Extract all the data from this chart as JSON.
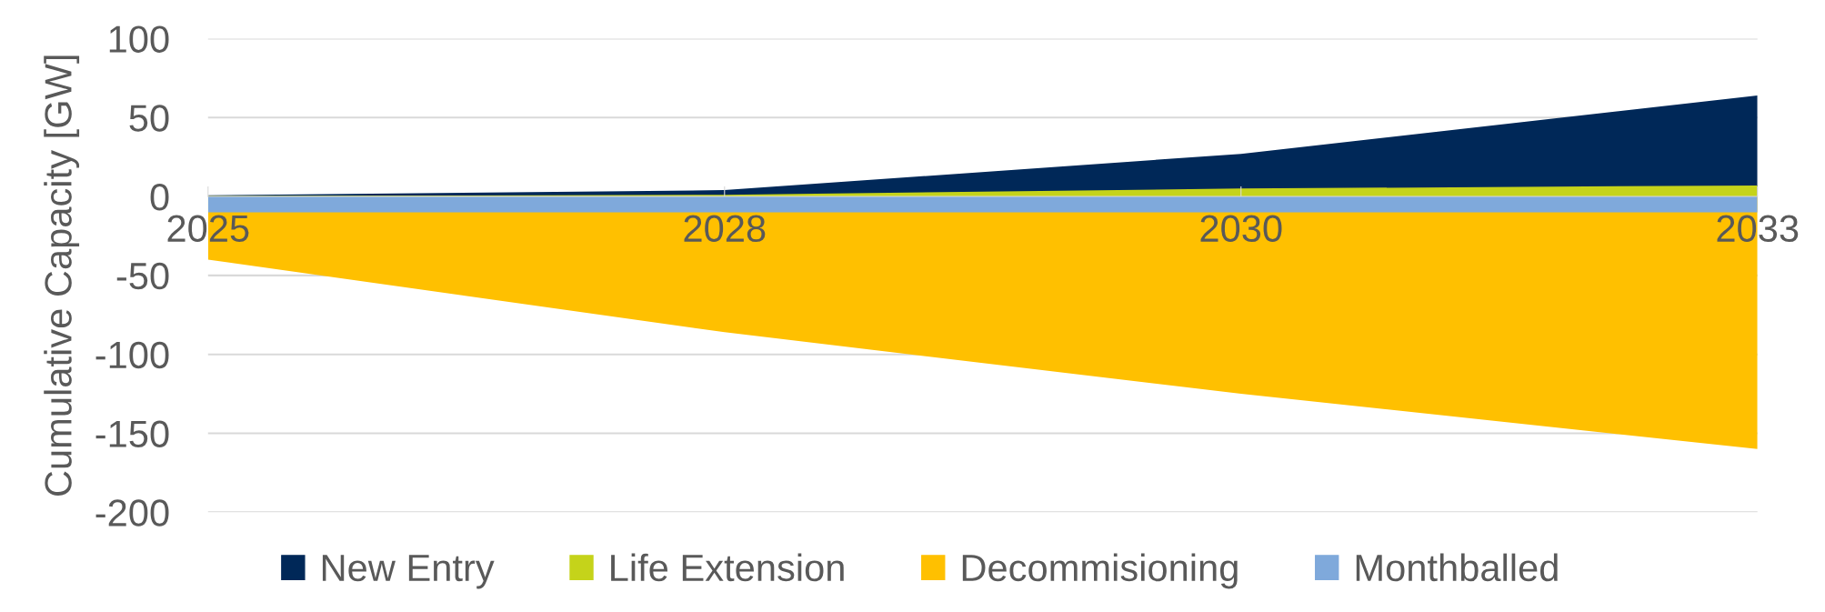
{
  "chart_data": {
    "type": "area",
    "ylabel": "Cumulative Capacity [GW]",
    "categories": [
      "2025",
      "2028",
      "2030",
      "2033"
    ],
    "series": [
      {
        "name": "New Entry",
        "color": "#002858",
        "values": [
          0.8,
          4,
          27,
          64
        ]
      },
      {
        "name": "Life Extension",
        "color": "#c5d31a",
        "values": [
          0.3,
          1,
          5,
          7
        ]
      },
      {
        "name": "Decommisioning",
        "color": "#ffc000",
        "values": [
          -40,
          -86,
          -125,
          -160
        ]
      },
      {
        "name": "Monthballed",
        "color": "#7fa9db",
        "values": [
          -10,
          -10,
          -10,
          -10
        ]
      }
    ],
    "ylim": [
      -200,
      100
    ],
    "yticks": [
      -200,
      -150,
      -100,
      -50,
      0,
      50,
      100
    ],
    "grid": "y",
    "legend": "bottom"
  }
}
